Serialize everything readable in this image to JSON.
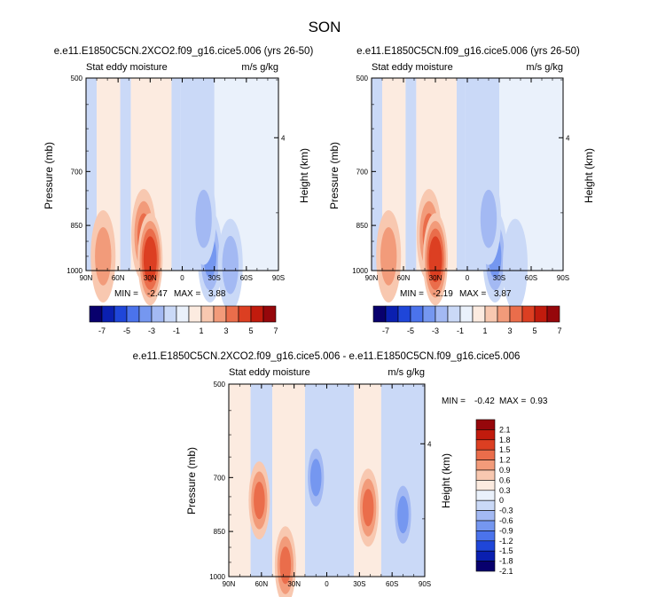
{
  "page_title": "SON",
  "chart_data": [
    {
      "type": "heatmap",
      "title": "e.e11.E1850C5CN.2XCO2.f09_g16.cice5.006 (yrs 26-50)",
      "subtitle_left": "Stat eddy moisture",
      "subtitle_right": "m/s g/kg",
      "ylabel": "Pressure (mb)",
      "y2label": "Height (km)",
      "x_ticks": [
        "90N",
        "60N",
        "30N",
        "0",
        "30S",
        "60S",
        "90S"
      ],
      "y_ticks": [
        "500",
        "700",
        "850",
        "1000"
      ],
      "y2_ticks": [
        "4"
      ],
      "stats": {
        "min_label": "MIN =",
        "min": "-2.47",
        "max_label": "MAX =",
        "max": "3.88"
      },
      "features": [
        {
          "kind": "pos",
          "lat": 36,
          "p": 880,
          "amp": 2.8
        },
        {
          "kind": "pos",
          "lat": 30,
          "p": 960,
          "amp": 3.9
        },
        {
          "kind": "pos",
          "lat": 74,
          "p": 950,
          "amp": 1.4
        },
        {
          "kind": "neg",
          "lat": -26,
          "p": 950,
          "amp": -2.4
        },
        {
          "kind": "neg",
          "lat": -20,
          "p": 830,
          "amp": -1.6
        },
        {
          "kind": "neg",
          "lat": -45,
          "p": 980,
          "amp": -1.3
        }
      ]
    },
    {
      "type": "heatmap",
      "title": "e.e11.E1850C5CN.f09_g16.cice5.006 (yrs 26-50)",
      "subtitle_left": "Stat eddy moisture",
      "subtitle_right": "m/s g/kg",
      "ylabel": "Pressure (mb)",
      "y2label": "Height (km)",
      "x_ticks": [
        "90N",
        "60N",
        "30N",
        "0",
        "30S",
        "60S",
        "90S"
      ],
      "y_ticks": [
        "500",
        "700",
        "850",
        "1000"
      ],
      "y2_ticks": [
        "4"
      ],
      "stats": {
        "min_label": "MIN =",
        "min": "-2.19",
        "max_label": "MAX =",
        "max": "3.87"
      },
      "features": [
        {
          "kind": "pos",
          "lat": 36,
          "p": 880,
          "amp": 2.8
        },
        {
          "kind": "pos",
          "lat": 30,
          "p": 960,
          "amp": 3.8
        },
        {
          "kind": "pos",
          "lat": 74,
          "p": 950,
          "amp": 1.4
        },
        {
          "kind": "neg",
          "lat": -26,
          "p": 950,
          "amp": -2.1
        },
        {
          "kind": "neg",
          "lat": -20,
          "p": 830,
          "amp": -1.5
        },
        {
          "kind": "neg",
          "lat": -45,
          "p": 980,
          "amp": -1.2
        }
      ]
    },
    {
      "type": "heatmap",
      "title": "e.e11.E1850C5CN.2XCO2.f09_g16.cice5.006 - e.e11.E1850C5CN.f09_g16.cice5.006",
      "subtitle_left": "Stat eddy moisture",
      "subtitle_right": "m/s g/kg",
      "ylabel": "Pressure (mb)",
      "y2label": "Height (km)",
      "x_ticks": [
        "90N",
        "60N",
        "30N",
        "0",
        "30S",
        "60S",
        "90S"
      ],
      "y_ticks": [
        "500",
        "700",
        "850",
        "1000"
      ],
      "y2_ticks": [
        "4"
      ],
      "stats": {
        "min_label": "MIN =",
        "min": "-0.42",
        "max_label": "MAX =",
        "max": "0.93"
      },
      "features": [
        {
          "kind": "pos",
          "lat": 62,
          "p": 760,
          "amp": 0.35
        },
        {
          "kind": "pos",
          "lat": 38,
          "p": 960,
          "amp": 0.3
        },
        {
          "kind": "pos",
          "lat": -38,
          "p": 780,
          "amp": 0.3
        },
        {
          "kind": "neg",
          "lat": 10,
          "p": 700,
          "amp": -0.3
        },
        {
          "kind": "neg",
          "lat": -70,
          "p": 800,
          "amp": -0.3
        }
      ]
    }
  ],
  "colorbar_main": {
    "labels": [
      "-7",
      "-5",
      "-3",
      "-1",
      "1",
      "3",
      "5",
      "7"
    ],
    "colors": [
      "#08006d",
      "#0a1fb0",
      "#1f46d9",
      "#4b73ec",
      "#7597f0",
      "#a3b9f3",
      "#cad9f7",
      "#eaf1fb",
      "#fcebe0",
      "#f8c8b0",
      "#f29b7a",
      "#ea6d4b",
      "#dc3f22",
      "#c11b0d",
      "#96070b"
    ]
  },
  "colorbar_diff": {
    "labels": [
      "2.1",
      "1.8",
      "1.5",
      "1.2",
      "0.9",
      "0.6",
      "0.3",
      "0",
      "-0.3",
      "-0.6",
      "-0.9",
      "-1.2",
      "-1.5",
      "-1.8",
      "-2.1"
    ],
    "colors": [
      "#96070b",
      "#c11b0d",
      "#dc3f22",
      "#ea6d4b",
      "#f29b7a",
      "#f8c8b0",
      "#fcebe0",
      "#eaf1fb",
      "#cad9f7",
      "#a3b9f3",
      "#7597f0",
      "#4b73ec",
      "#1f46d9",
      "#0a1fb0",
      "#08006d"
    ]
  }
}
